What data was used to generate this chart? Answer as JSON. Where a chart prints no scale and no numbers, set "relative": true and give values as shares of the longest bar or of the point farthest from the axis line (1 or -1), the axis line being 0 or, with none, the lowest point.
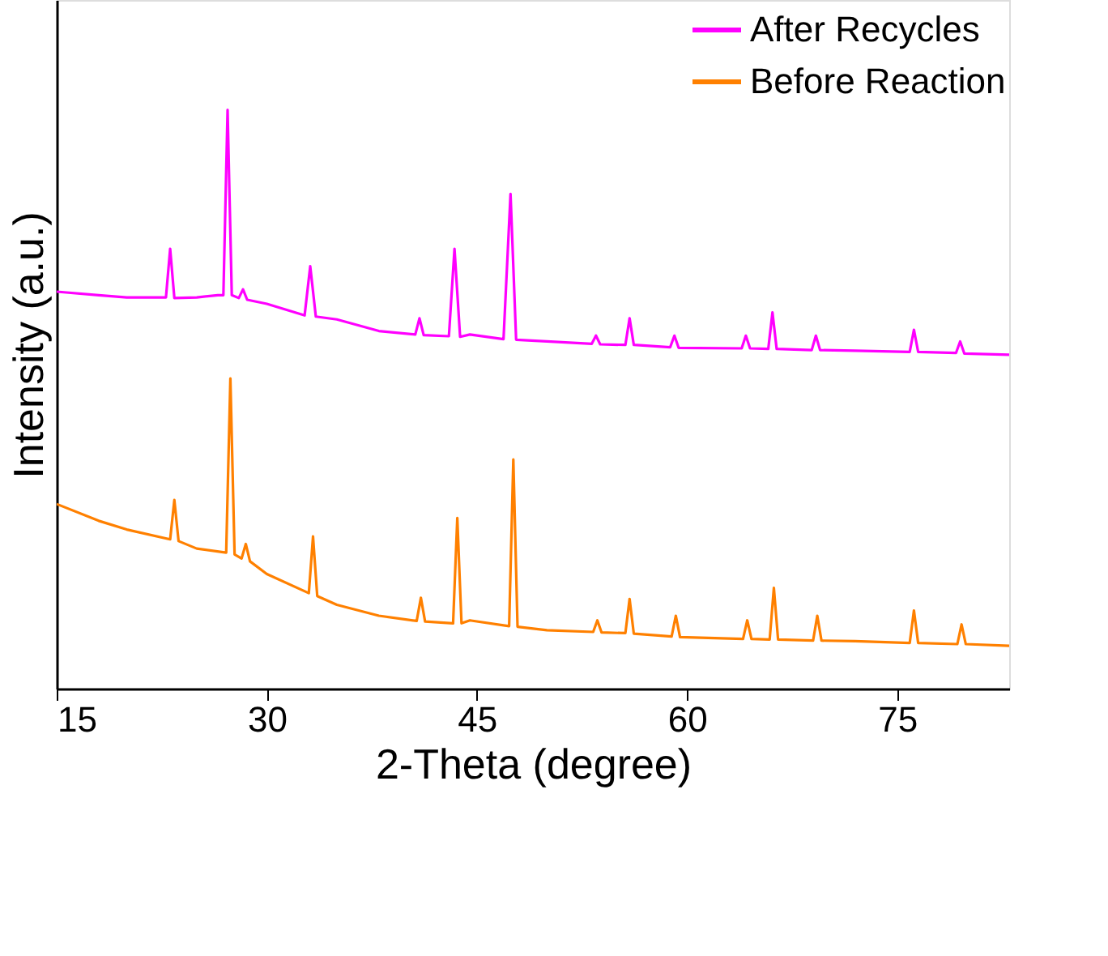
{
  "chart_data": {
    "type": "line",
    "relative": true,
    "xlabel": "2-Theta (degree)",
    "ylabel": "Intensity (a.u.)",
    "xlim": [
      15,
      83
    ],
    "xticks": [
      15,
      30,
      45,
      60,
      75
    ],
    "legend": "top right",
    "grid": false,
    "marker": "none",
    "line_style": "solid",
    "series": [
      {
        "name": "After Recycles",
        "color": "#ff00ff",
        "x": [
          15,
          18,
          20,
          22.5,
          22.8,
          23.1,
          23.4,
          25,
          26.5,
          26.9,
          27.2,
          27.5,
          28.0,
          28.3,
          28.6,
          30,
          32.7,
          33.1,
          33.5,
          35,
          38,
          40.6,
          40.9,
          41.2,
          43.0,
          43.4,
          43.8,
          44.5,
          46.9,
          47.4,
          47.8,
          50,
          53.2,
          53.5,
          53.8,
          55.6,
          55.9,
          56.2,
          58.8,
          59.1,
          59.4,
          63.9,
          64.2,
          64.5,
          65.8,
          66.1,
          66.4,
          68.9,
          69.2,
          69.5,
          72,
          75.9,
          76.2,
          76.5,
          79.2,
          79.5,
          79.8,
          83
        ],
        "values": [
          0.686,
          0.68,
          0.676,
          0.676,
          0.676,
          0.76,
          0.675,
          0.676,
          0.68,
          0.68,
          1.0,
          0.68,
          0.675,
          0.69,
          0.672,
          0.665,
          0.645,
          0.73,
          0.643,
          0.638,
          0.618,
          0.612,
          0.64,
          0.611,
          0.609,
          0.76,
          0.608,
          0.612,
          0.604,
          0.855,
          0.603,
          0.6,
          0.596,
          0.61,
          0.595,
          0.594,
          0.64,
          0.594,
          0.59,
          0.61,
          0.589,
          0.588,
          0.61,
          0.588,
          0.587,
          0.65,
          0.587,
          0.585,
          0.61,
          0.585,
          0.584,
          0.582,
          0.62,
          0.582,
          0.58,
          0.6,
          0.579,
          0.577
        ]
      },
      {
        "name": "Before Reaction",
        "color": "#ff8000",
        "x": [
          15,
          18,
          20,
          23.1,
          23.4,
          23.7,
          25,
          27.1,
          27.4,
          27.7,
          28.2,
          28.5,
          28.8,
          30,
          33.0,
          33.3,
          33.6,
          35,
          38,
          40.7,
          41.0,
          41.3,
          43.3,
          43.6,
          43.9,
          44.5,
          47.3,
          47.6,
          47.9,
          50,
          53.3,
          53.6,
          53.9,
          55.6,
          55.9,
          56.2,
          58.9,
          59.2,
          59.5,
          64.0,
          64.3,
          64.6,
          65.9,
          66.2,
          66.5,
          69.0,
          69.3,
          69.6,
          72,
          75.9,
          76.2,
          76.5,
          79.3,
          79.6,
          79.9,
          83
        ],
        "values": [
          0.319,
          0.29,
          0.275,
          0.258,
          0.326,
          0.255,
          0.242,
          0.235,
          0.536,
          0.232,
          0.225,
          0.25,
          0.22,
          0.198,
          0.165,
          0.263,
          0.16,
          0.145,
          0.126,
          0.117,
          0.157,
          0.116,
          0.113,
          0.295,
          0.113,
          0.118,
          0.108,
          0.396,
          0.107,
          0.101,
          0.098,
          0.118,
          0.097,
          0.096,
          0.155,
          0.095,
          0.09,
          0.126,
          0.089,
          0.086,
          0.118,
          0.086,
          0.085,
          0.174,
          0.085,
          0.083,
          0.126,
          0.083,
          0.082,
          0.079,
          0.135,
          0.079,
          0.077,
          0.111,
          0.077,
          0.074
        ]
      }
    ]
  }
}
